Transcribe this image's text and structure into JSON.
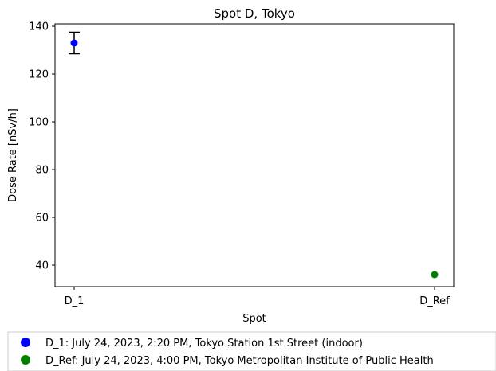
{
  "chart_data": {
    "type": "scatter",
    "title": "Spot D, Tokyo",
    "xlabel": "Spot",
    "ylabel": "Dose Rate [nSv/h]",
    "categories": [
      "D_1",
      "D_Ref"
    ],
    "ylim": [
      31,
      141
    ],
    "yticks": [
      40,
      60,
      80,
      100,
      120,
      140
    ],
    "grid": false,
    "legend_position": "bottom",
    "points": [
      {
        "category": "D_1",
        "value": 133,
        "error": 4.5,
        "color": "#0000ff"
      },
      {
        "category": "D_Ref",
        "value": 36,
        "error": null,
        "color": "#008000"
      }
    ],
    "legend": [
      {
        "label": "D_1: July 24, 2023, 2:20 PM, Tokyo Station 1st Street (indoor)",
        "color": "#0000ff"
      },
      {
        "label": "D_Ref: July 24, 2023, 4:00 PM, Tokyo Metropolitan Institute of Public Health",
        "color": "#008000"
      }
    ]
  }
}
